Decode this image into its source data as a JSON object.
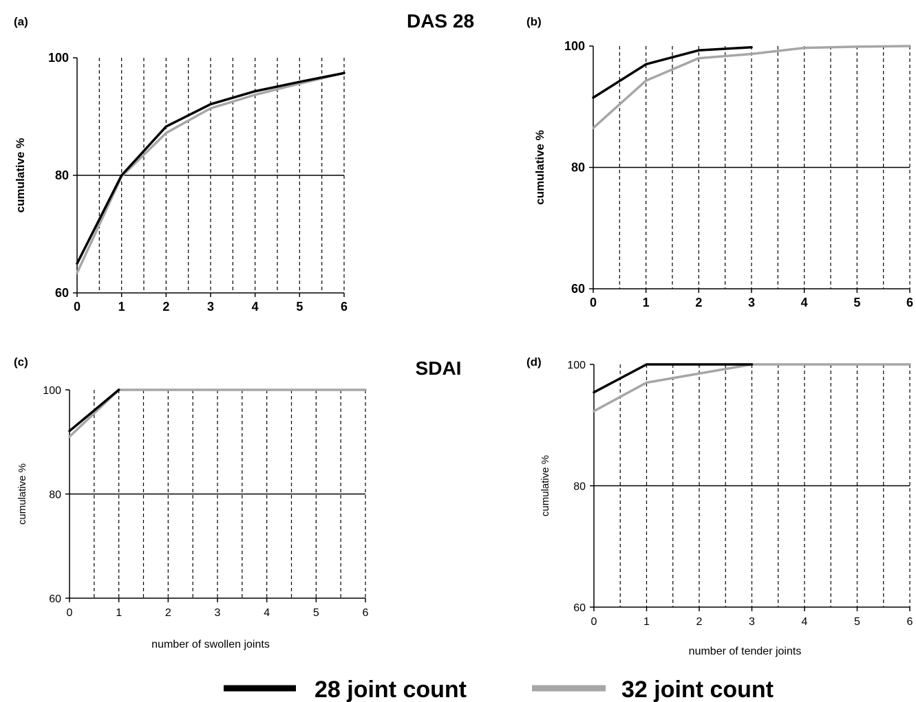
{
  "section_titles": {
    "top": "DAS 28",
    "bottom": "SDAI"
  },
  "legend": {
    "items": [
      {
        "label": "28 joint count",
        "color": "#000000"
      },
      {
        "label": "32 joint count",
        "color": "#a6a6a6"
      }
    ]
  },
  "chart_data": [
    {
      "id": "a",
      "panel_label": "(a)",
      "type": "line",
      "ylabel": "cumulative %",
      "xlabel": "",
      "xlim": [
        0,
        6
      ],
      "ylim": [
        60,
        100
      ],
      "xticks": [
        "0",
        "1",
        "2",
        "3",
        "4",
        "5",
        "6"
      ],
      "yticks": [
        "60",
        "80",
        "100"
      ],
      "hline": 80,
      "grid": "dashed vertical lines at each 0.5 step",
      "series": [
        {
          "name": "28 joint count",
          "color": "#000000",
          "x": [
            0,
            1,
            2,
            3,
            4,
            5,
            6
          ],
          "y": [
            65,
            80,
            88.3,
            92.1,
            94.3,
            95.9,
            97.4
          ]
        },
        {
          "name": "32 joint count",
          "color": "#a6a6a6",
          "x": [
            0,
            1,
            2,
            3,
            4,
            5,
            6
          ],
          "y": [
            63.4,
            79.8,
            87.2,
            91.4,
            93.7,
            95.6,
            97.4
          ]
        }
      ]
    },
    {
      "id": "b",
      "panel_label": "(b)",
      "type": "line",
      "ylabel": "cumulative %",
      "xlabel": "",
      "xlim": [
        0,
        6
      ],
      "ylim": [
        60,
        100
      ],
      "xticks": [
        "0",
        "1",
        "2",
        "3",
        "4",
        "5",
        "6"
      ],
      "yticks": [
        "60",
        "80",
        "100"
      ],
      "hline": 80,
      "grid": "dashed vertical lines at each 0.5 step",
      "series": [
        {
          "name": "28 joint count",
          "color": "#000000",
          "x": [
            0,
            1,
            2,
            3
          ],
          "y": [
            91.5,
            97,
            99.3,
            99.8
          ]
        },
        {
          "name": "32 joint count",
          "color": "#a6a6a6",
          "x": [
            0,
            1,
            2,
            3,
            4,
            5,
            6
          ],
          "y": [
            86.5,
            94.3,
            98,
            98.7,
            99.7,
            99.9,
            100
          ]
        }
      ]
    },
    {
      "id": "c",
      "panel_label": "(c)",
      "type": "line",
      "ylabel": "cumulative %",
      "xlabel": "number of swollen joints",
      "xlim": [
        0,
        6
      ],
      "ylim": [
        60,
        100
      ],
      "xticks": [
        "0",
        "1",
        "2",
        "3",
        "4",
        "5",
        "6"
      ],
      "yticks": [
        "60",
        "80",
        "100"
      ],
      "hline": 80,
      "grid": "dashed vertical lines at each 0.5 step",
      "series": [
        {
          "name": "28 joint count",
          "color": "#000000",
          "x": [
            0,
            1
          ],
          "y": [
            92.1,
            100
          ]
        },
        {
          "name": "32 joint count",
          "color": "#a6a6a6",
          "x": [
            0,
            1,
            2,
            3,
            4,
            5,
            6
          ],
          "y": [
            91,
            100,
            100,
            100,
            100,
            100,
            100
          ]
        }
      ]
    },
    {
      "id": "d",
      "panel_label": "(d)",
      "type": "line",
      "ylabel": "cumulative %",
      "xlabel": "number of tender joints",
      "xlim": [
        0,
        6
      ],
      "ylim": [
        60,
        100
      ],
      "xticks": [
        "0",
        "1",
        "2",
        "3",
        "4",
        "5",
        "6"
      ],
      "yticks": [
        "60",
        "80",
        "100"
      ],
      "hline": 80,
      "grid": "dashed vertical lines at each 0.5 step",
      "series": [
        {
          "name": "28 joint count",
          "color": "#000000",
          "x": [
            0,
            1,
            2,
            3
          ],
          "y": [
            95.4,
            100,
            100,
            100
          ]
        },
        {
          "name": "32 joint count",
          "color": "#a6a6a6",
          "x": [
            0,
            1,
            2,
            3,
            4,
            5,
            6
          ],
          "y": [
            92.3,
            97,
            98.5,
            100,
            100,
            100,
            100
          ]
        }
      ]
    }
  ]
}
